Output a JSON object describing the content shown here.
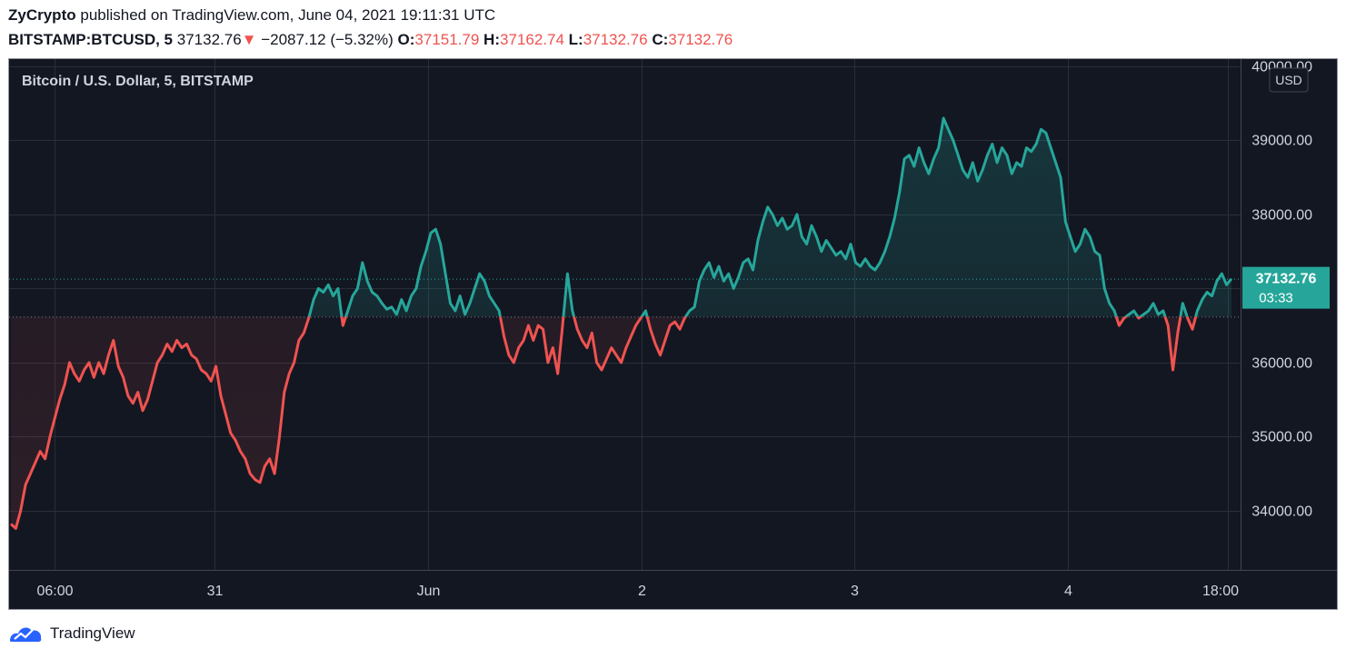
{
  "header": {
    "author": "ZyCrypto",
    "published_text": "published on TradingView.com, June 04, 2021 19:11:31 UTC",
    "symbol": "BITSTAMP:BTCUSD, 5",
    "last_price": "37132.76",
    "change_arrow": "▼",
    "change": "−2087.12 (−5.32%)",
    "o_label": "O:",
    "o_value": "37151.79",
    "h_label": "H:",
    "h_value": "37162.74",
    "l_label": "L:",
    "l_value": "37132.76",
    "c_label": "C:",
    "c_value": "37132.76"
  },
  "chart_title": "Bitcoin / U.S. Dollar, 5, BITSTAMP",
  "currency_badge": "USD",
  "price_tag": {
    "price": "37132.76",
    "countdown": "03:33"
  },
  "footer": {
    "brand": "TradingView",
    "icon": "tradingview-logo-icon"
  },
  "colors": {
    "background": "#131722",
    "up": "#26a69a",
    "down": "#ef5350",
    "grid": "#2a2e39",
    "text": "#d1d4dc"
  },
  "chart_data": {
    "type": "line",
    "style": "baseline",
    "baseline": 36620,
    "ylim": [
      33200,
      40000
    ],
    "yticks": [
      "34000.00",
      "35000.00",
      "36000.00",
      "37000.00",
      "38000.00",
      "39000.00",
      "40000.00"
    ],
    "xlim": [
      0,
      100
    ],
    "xticks": [
      {
        "label": "06:00",
        "x": 3.6
      },
      {
        "label": "31",
        "x": 16.7
      },
      {
        "label": "Jun",
        "x": 34.2
      },
      {
        "label": "2",
        "x": 51.7
      },
      {
        "label": "3",
        "x": 69.1
      },
      {
        "label": "4",
        "x": 86.6
      },
      {
        "label": "18:00",
        "x": 99.7
      }
    ],
    "last_value": 37132.76,
    "points": [
      [
        0.0,
        33820
      ],
      [
        0.4,
        33760
      ],
      [
        0.8,
        34000
      ],
      [
        1.2,
        34350
      ],
      [
        1.6,
        34500
      ],
      [
        2.0,
        34650
      ],
      [
        2.4,
        34800
      ],
      [
        2.8,
        34700
      ],
      [
        3.2,
        35000
      ],
      [
        3.6,
        35250
      ],
      [
        4.0,
        35500
      ],
      [
        4.4,
        35700
      ],
      [
        4.8,
        36000
      ],
      [
        5.2,
        35850
      ],
      [
        5.6,
        35750
      ],
      [
        6.0,
        35900
      ],
      [
        6.4,
        36000
      ],
      [
        6.8,
        35800
      ],
      [
        7.2,
        36000
      ],
      [
        7.6,
        35850
      ],
      [
        8.0,
        36100
      ],
      [
        8.4,
        36300
      ],
      [
        8.8,
        35950
      ],
      [
        9.2,
        35800
      ],
      [
        9.6,
        35550
      ],
      [
        10.0,
        35450
      ],
      [
        10.4,
        35600
      ],
      [
        10.8,
        35350
      ],
      [
        11.2,
        35500
      ],
      [
        11.6,
        35750
      ],
      [
        12.0,
        36000
      ],
      [
        12.4,
        36100
      ],
      [
        12.8,
        36250
      ],
      [
        13.2,
        36150
      ],
      [
        13.6,
        36300
      ],
      [
        14.0,
        36200
      ],
      [
        14.4,
        36250
      ],
      [
        14.8,
        36100
      ],
      [
        15.2,
        36050
      ],
      [
        15.6,
        35900
      ],
      [
        16.0,
        35850
      ],
      [
        16.4,
        35750
      ],
      [
        16.8,
        35950
      ],
      [
        17.2,
        35550
      ],
      [
        17.6,
        35300
      ],
      [
        18.0,
        35050
      ],
      [
        18.4,
        34950
      ],
      [
        18.8,
        34800
      ],
      [
        19.2,
        34700
      ],
      [
        19.6,
        34500
      ],
      [
        20.0,
        34420
      ],
      [
        20.4,
        34380
      ],
      [
        20.8,
        34600
      ],
      [
        21.2,
        34700
      ],
      [
        21.6,
        34500
      ],
      [
        22.0,
        35000
      ],
      [
        22.4,
        35600
      ],
      [
        22.8,
        35850
      ],
      [
        23.2,
        36000
      ],
      [
        23.6,
        36300
      ],
      [
        24.0,
        36400
      ],
      [
        24.4,
        36600
      ],
      [
        24.8,
        36850
      ],
      [
        25.2,
        37000
      ],
      [
        25.6,
        36950
      ],
      [
        26.0,
        37050
      ],
      [
        26.4,
        36900
      ],
      [
        26.8,
        37000
      ],
      [
        27.2,
        36500
      ],
      [
        27.6,
        36700
      ],
      [
        28.0,
        36900
      ],
      [
        28.4,
        37000
      ],
      [
        28.8,
        37350
      ],
      [
        29.2,
        37100
      ],
      [
        29.6,
        36950
      ],
      [
        30.0,
        36900
      ],
      [
        30.4,
        36800
      ],
      [
        30.8,
        36720
      ],
      [
        31.2,
        36750
      ],
      [
        31.6,
        36650
      ],
      [
        32.0,
        36850
      ],
      [
        32.4,
        36700
      ],
      [
        32.8,
        36900
      ],
      [
        33.2,
        37000
      ],
      [
        33.6,
        37300
      ],
      [
        34.0,
        37500
      ],
      [
        34.4,
        37750
      ],
      [
        34.8,
        37800
      ],
      [
        35.2,
        37600
      ],
      [
        35.6,
        37200
      ],
      [
        36.0,
        36800
      ],
      [
        36.4,
        36700
      ],
      [
        36.8,
        36900
      ],
      [
        37.2,
        36650
      ],
      [
        37.6,
        36800
      ],
      [
        38.0,
        37000
      ],
      [
        38.4,
        37200
      ],
      [
        38.8,
        37100
      ],
      [
        39.2,
        36900
      ],
      [
        39.6,
        36800
      ],
      [
        40.0,
        36700
      ],
      [
        40.4,
        36350
      ],
      [
        40.8,
        36100
      ],
      [
        41.2,
        36000
      ],
      [
        41.6,
        36200
      ],
      [
        42.0,
        36300
      ],
      [
        42.4,
        36500
      ],
      [
        42.8,
        36300
      ],
      [
        43.2,
        36500
      ],
      [
        43.6,
        36450
      ],
      [
        44.0,
        36000
      ],
      [
        44.4,
        36200
      ],
      [
        44.8,
        35850
      ],
      [
        45.2,
        36500
      ],
      [
        45.6,
        37200
      ],
      [
        46.0,
        36700
      ],
      [
        46.4,
        36450
      ],
      [
        46.8,
        36300
      ],
      [
        47.2,
        36200
      ],
      [
        47.6,
        36400
      ],
      [
        48.0,
        36000
      ],
      [
        48.4,
        35900
      ],
      [
        48.8,
        36050
      ],
      [
        49.2,
        36200
      ],
      [
        49.6,
        36100
      ],
      [
        50.0,
        36000
      ],
      [
        50.4,
        36200
      ],
      [
        50.8,
        36350
      ],
      [
        51.2,
        36500
      ],
      [
        51.6,
        36600
      ],
      [
        52.0,
        36700
      ],
      [
        52.4,
        36450
      ],
      [
        52.8,
        36250
      ],
      [
        53.2,
        36100
      ],
      [
        53.6,
        36300
      ],
      [
        54.0,
        36500
      ],
      [
        54.4,
        36550
      ],
      [
        54.8,
        36450
      ],
      [
        55.2,
        36600
      ],
      [
        55.6,
        36700
      ],
      [
        56.0,
        36750
      ],
      [
        56.4,
        37100
      ],
      [
        56.8,
        37250
      ],
      [
        57.2,
        37350
      ],
      [
        57.6,
        37150
      ],
      [
        58.0,
        37300
      ],
      [
        58.4,
        37100
      ],
      [
        58.8,
        37200
      ],
      [
        59.2,
        37000
      ],
      [
        59.6,
        37150
      ],
      [
        60.0,
        37350
      ],
      [
        60.4,
        37400
      ],
      [
        60.8,
        37250
      ],
      [
        61.2,
        37650
      ],
      [
        61.6,
        37900
      ],
      [
        62.0,
        38100
      ],
      [
        62.4,
        38000
      ],
      [
        62.8,
        37850
      ],
      [
        63.2,
        37950
      ],
      [
        63.6,
        37800
      ],
      [
        64.0,
        37850
      ],
      [
        64.4,
        38000
      ],
      [
        64.8,
        37700
      ],
      [
        65.2,
        37600
      ],
      [
        65.6,
        37850
      ],
      [
        66.0,
        37700
      ],
      [
        66.4,
        37500
      ],
      [
        66.8,
        37650
      ],
      [
        67.2,
        37550
      ],
      [
        67.6,
        37450
      ],
      [
        68.0,
        37500
      ],
      [
        68.4,
        37400
      ],
      [
        68.8,
        37600
      ],
      [
        69.2,
        37350
      ],
      [
        69.6,
        37300
      ],
      [
        70.0,
        37400
      ],
      [
        70.4,
        37300
      ],
      [
        70.8,
        37250
      ],
      [
        71.2,
        37350
      ],
      [
        71.6,
        37500
      ],
      [
        72.0,
        37700
      ],
      [
        72.4,
        37950
      ],
      [
        72.8,
        38300
      ],
      [
        73.2,
        38750
      ],
      [
        73.6,
        38800
      ],
      [
        74.0,
        38650
      ],
      [
        74.4,
        38900
      ],
      [
        74.8,
        38700
      ],
      [
        75.2,
        38550
      ],
      [
        75.6,
        38750
      ],
      [
        76.0,
        38900
      ],
      [
        76.4,
        39300
      ],
      [
        76.8,
        39150
      ],
      [
        77.2,
        39000
      ],
      [
        77.6,
        38800
      ],
      [
        78.0,
        38600
      ],
      [
        78.4,
        38500
      ],
      [
        78.8,
        38700
      ],
      [
        79.2,
        38450
      ],
      [
        79.6,
        38600
      ],
      [
        80.0,
        38800
      ],
      [
        80.4,
        38950
      ],
      [
        80.8,
        38700
      ],
      [
        81.2,
        38900
      ],
      [
        81.6,
        38800
      ],
      [
        82.0,
        38550
      ],
      [
        82.4,
        38700
      ],
      [
        82.8,
        38650
      ],
      [
        83.2,
        38900
      ],
      [
        83.6,
        38850
      ],
      [
        84.0,
        38950
      ],
      [
        84.4,
        39150
      ],
      [
        84.8,
        39100
      ],
      [
        85.2,
        38900
      ],
      [
        85.6,
        38700
      ],
      [
        86.0,
        38500
      ],
      [
        86.4,
        37900
      ],
      [
        86.8,
        37700
      ],
      [
        87.2,
        37500
      ],
      [
        87.6,
        37600
      ],
      [
        88.0,
        37800
      ],
      [
        88.4,
        37700
      ],
      [
        88.8,
        37500
      ],
      [
        89.2,
        37450
      ],
      [
        89.6,
        37000
      ],
      [
        90.0,
        36800
      ],
      [
        90.4,
        36700
      ],
      [
        90.8,
        36500
      ],
      [
        91.2,
        36600
      ],
      [
        91.6,
        36650
      ],
      [
        92.0,
        36700
      ],
      [
        92.4,
        36600
      ],
      [
        92.8,
        36650
      ],
      [
        93.2,
        36700
      ],
      [
        93.6,
        36800
      ],
      [
        94.0,
        36650
      ],
      [
        94.4,
        36700
      ],
      [
        94.8,
        36500
      ],
      [
        95.2,
        35900
      ],
      [
        95.6,
        36400
      ],
      [
        96.0,
        36800
      ],
      [
        96.4,
        36600
      ],
      [
        96.8,
        36450
      ],
      [
        97.2,
        36700
      ],
      [
        97.6,
        36850
      ],
      [
        98.0,
        36950
      ],
      [
        98.4,
        36900
      ],
      [
        98.8,
        37100
      ],
      [
        99.2,
        37200
      ],
      [
        99.6,
        37050
      ],
      [
        100.0,
        37132
      ]
    ]
  }
}
